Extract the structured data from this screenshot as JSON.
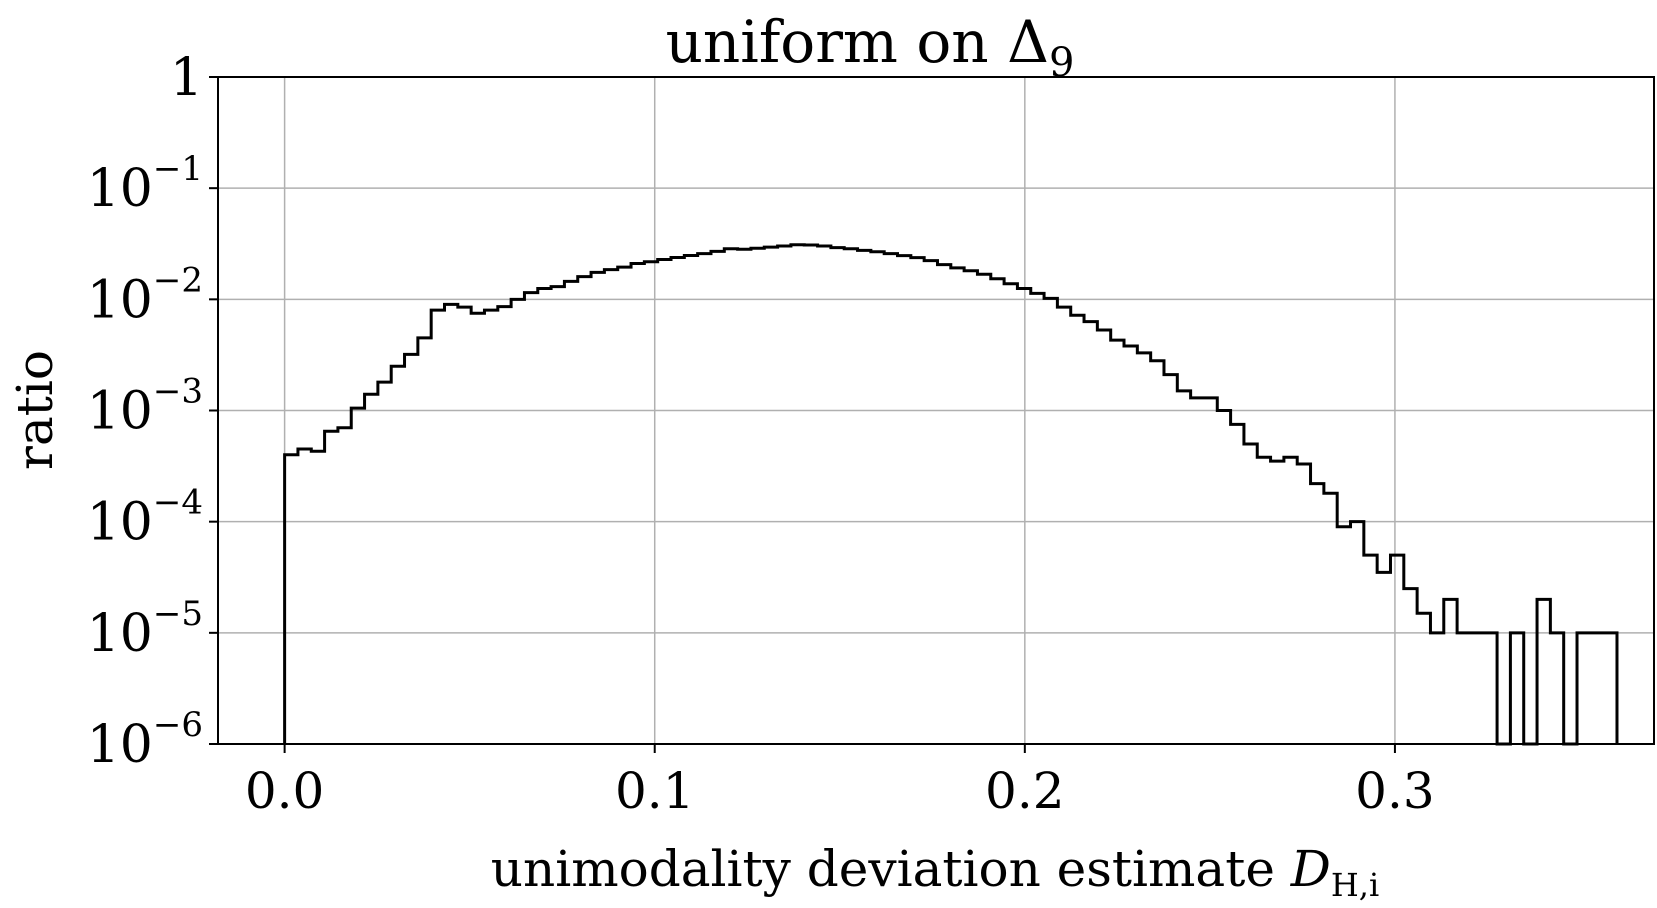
{
  "chart_data": {
    "type": "histogram",
    "title": "uniform on Δ",
    "title_subscript": "9",
    "xlabel": "unimodality deviation estimate ",
    "xlabel_symbol": "D",
    "xlabel_subscript": "H,i",
    "ylabel": "ratio",
    "y_scale": "log",
    "xlim": [
      -0.018,
      0.37
    ],
    "ylim": [
      1e-06,
      1
    ],
    "grid": true,
    "x_ticks": [
      {
        "value": 0.0,
        "label": "0.0"
      },
      {
        "value": 0.1,
        "label": "0.1"
      },
      {
        "value": 0.2,
        "label": "0.2"
      },
      {
        "value": 0.3,
        "label": "0.3"
      }
    ],
    "y_ticks": [
      {
        "value": 1,
        "base": "1",
        "exp": ""
      },
      {
        "value": 0.1,
        "base": "10",
        "exp": "−1"
      },
      {
        "value": 0.01,
        "base": "10",
        "exp": "−2"
      },
      {
        "value": 0.001,
        "base": "10",
        "exp": "−3"
      },
      {
        "value": 0.0001,
        "base": "10",
        "exp": "−4"
      },
      {
        "value": 1e-05,
        "base": "10",
        "exp": "−5"
      },
      {
        "value": 1e-06,
        "base": "10",
        "exp": "−6"
      }
    ],
    "bin_start": 0.0,
    "bin_width": 0.0036,
    "values": [
      0.0004,
      0.00045,
      0.00043,
      0.00065,
      0.0007,
      0.00105,
      0.0014,
      0.0018,
      0.0025,
      0.0032,
      0.0045,
      0.008,
      0.009,
      0.0085,
      0.0075,
      0.008,
      0.0086,
      0.01,
      0.0115,
      0.0125,
      0.013,
      0.0145,
      0.016,
      0.0175,
      0.0185,
      0.0195,
      0.021,
      0.0218,
      0.0228,
      0.0238,
      0.0248,
      0.0258,
      0.027,
      0.0285,
      0.0282,
      0.0288,
      0.0295,
      0.0302,
      0.031,
      0.0308,
      0.0302,
      0.0292,
      0.0285,
      0.0276,
      0.0268,
      0.0258,
      0.0247,
      0.0237,
      0.0223,
      0.0205,
      0.0192,
      0.0181,
      0.0168,
      0.0153,
      0.0138,
      0.0125,
      0.0113,
      0.0102,
      0.0085,
      0.0072,
      0.0063,
      0.0053,
      0.0043,
      0.0038,
      0.0033,
      0.0028,
      0.0021,
      0.0015,
      0.0013,
      0.0013,
      0.001,
      0.00075,
      0.0005,
      0.00038,
      0.00035,
      0.00038,
      0.00033,
      0.00022,
      0.00018,
      9e-05,
      0.0001,
      5e-05,
      3.5e-05,
      5e-05,
      2.5e-05,
      1.5e-05,
      1e-05,
      2e-05,
      1e-05,
      1e-05,
      1e-05,
      0.0,
      1e-05,
      0.0,
      2e-05,
      1e-05,
      0.0,
      1e-05,
      1e-05,
      1e-05
    ],
    "line_color": "#000000",
    "grid_color": "#b0b0b0"
  }
}
